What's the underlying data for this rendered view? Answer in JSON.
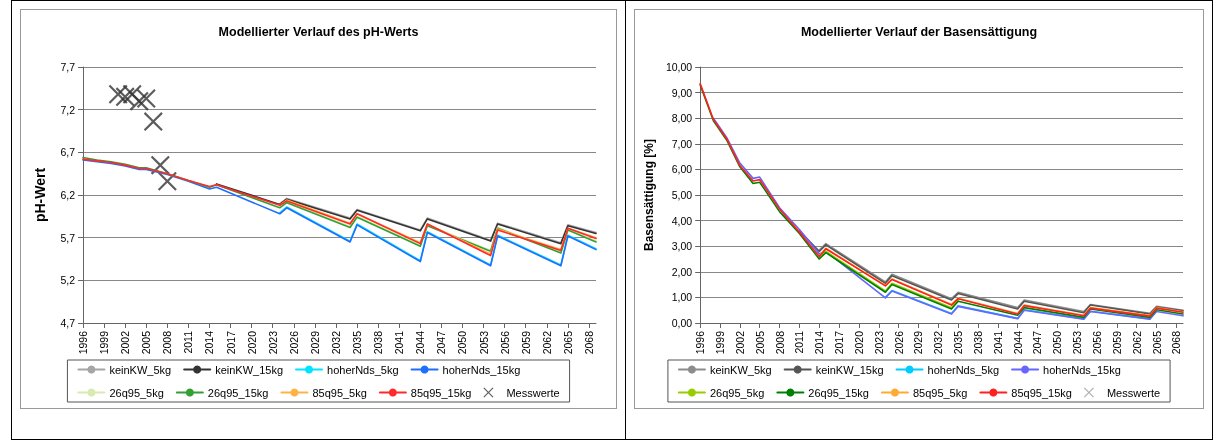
{
  "chart_data": [
    {
      "type": "line",
      "title": "Modellierter Verlauf des pH-Werts",
      "ylabel": "pH-Wert",
      "x": [
        1996,
        1998,
        2000,
        2002,
        2004,
        2005,
        2008,
        2011,
        2014,
        2015,
        2024,
        2025,
        2034,
        2035,
        2044,
        2045,
        2054,
        2055,
        2064,
        2065,
        2069
      ],
      "xlim": [
        1996,
        2069
      ],
      "xticks": [
        1996,
        1999,
        2002,
        2005,
        2008,
        2011,
        2014,
        2017,
        2020,
        2023,
        2026,
        2029,
        2032,
        2035,
        2038,
        2041,
        2044,
        2047,
        2050,
        2053,
        2056,
        2059,
        2062,
        2065,
        2068
      ],
      "ylim": [
        4.7,
        7.7
      ],
      "yticks": [
        {
          "value": 4.7,
          "label": "4,7"
        },
        {
          "value": 5.2,
          "label": "5,2"
        },
        {
          "value": 5.7,
          "label": "5,7"
        },
        {
          "value": 6.2,
          "label": "6,2"
        },
        {
          "value": 6.7,
          "label": "6,7"
        },
        {
          "value": 7.2,
          "label": "7,2"
        },
        {
          "value": 7.7,
          "label": "7,7"
        }
      ],
      "grid": "y",
      "legend": "bottom",
      "marker": "none",
      "line_style": "solid",
      "series": [
        {
          "name": "keinKW_5kg",
          "color": "#a6a6a6",
          "values": [
            null,
            null,
            null,
            null,
            null,
            null,
            null,
            null,
            null,
            null,
            6.1,
            6.16,
            5.93,
            6.03,
            5.79,
            5.93,
            5.67,
            5.87,
            5.64,
            5.85,
            5.76
          ]
        },
        {
          "name": "keinKW_15kg",
          "color": "#333333",
          "values": [
            null,
            null,
            null,
            null,
            null,
            null,
            null,
            null,
            null,
            6.33,
            6.09,
            6.15,
            5.92,
            6.02,
            5.78,
            5.92,
            5.66,
            5.86,
            5.63,
            5.84,
            5.75
          ]
        },
        {
          "name": "hoherNds_5kg",
          "color": "#00e5ff",
          "values": [
            null,
            null,
            null,
            null,
            null,
            null,
            null,
            null,
            null,
            null,
            5.99,
            6.06,
            5.66,
            5.86,
            5.43,
            5.77,
            5.38,
            5.73,
            5.38,
            5.73,
            5.57
          ]
        },
        {
          "name": "hoherNds_15kg",
          "color": "#1f6fff",
          "values": [
            6.61,
            6.59,
            6.57,
            6.54,
            6.5,
            6.5,
            6.44,
            6.36,
            6.27,
            6.29,
            5.98,
            6.05,
            5.65,
            5.85,
            5.42,
            5.76,
            5.37,
            5.72,
            5.37,
            5.72,
            5.56
          ]
        },
        {
          "name": "26q95_5kg",
          "color": "#d9eab0",
          "values": [
            null,
            null,
            null,
            null,
            null,
            null,
            null,
            null,
            null,
            null,
            6.06,
            6.12,
            5.83,
            5.95,
            5.61,
            5.85,
            5.55,
            5.82,
            5.53,
            5.8,
            5.66
          ]
        },
        {
          "name": "26q95_15kg",
          "color": "#33a033",
          "values": [
            6.64,
            6.61,
            6.59,
            6.56,
            6.52,
            6.52,
            6.45,
            6.37,
            6.29,
            6.32,
            6.05,
            6.11,
            5.82,
            5.94,
            5.6,
            5.84,
            5.54,
            5.81,
            5.52,
            5.79,
            5.65
          ]
        },
        {
          "name": "85q95_5kg",
          "color": "#ffb347",
          "values": [
            null,
            null,
            null,
            null,
            null,
            null,
            null,
            null,
            null,
            null,
            6.08,
            6.14,
            5.87,
            5.98,
            5.64,
            5.86,
            5.51,
            5.8,
            5.56,
            5.81,
            5.7
          ]
        },
        {
          "name": "85q95_15kg",
          "color": "#ff2a2a",
          "values": [
            6.62,
            6.6,
            6.58,
            6.55,
            6.51,
            6.51,
            6.45,
            6.37,
            6.3,
            6.32,
            6.08,
            6.13,
            5.86,
            5.98,
            5.63,
            5.86,
            5.49,
            5.79,
            5.55,
            5.81,
            5.69
          ]
        },
        {
          "name": "Messwerte",
          "type": "scatter",
          "marker": "cross",
          "color": "#333333",
          "x": [
            2001,
            2002,
            2003,
            2004,
            2005,
            2006,
            2007,
            2008
          ],
          "values": [
            7.38,
            7.35,
            7.38,
            7.3,
            7.33,
            7.06,
            6.55,
            6.36
          ]
        }
      ]
    },
    {
      "type": "line",
      "title": "Modellierter Verlauf der Basensättigung",
      "ylabel": "Basensättigung [%]",
      "x": [
        1996,
        1998,
        2000,
        2002,
        2004,
        2005,
        2008,
        2011,
        2014,
        2015,
        2024,
        2025,
        2034,
        2035,
        2044,
        2045,
        2054,
        2055,
        2064,
        2065,
        2069
      ],
      "xlim": [
        1996,
        2069
      ],
      "xticks": [
        1996,
        1999,
        2002,
        2005,
        2008,
        2011,
        2014,
        2017,
        2020,
        2023,
        2026,
        2029,
        2032,
        2035,
        2038,
        2041,
        2044,
        2047,
        2050,
        2053,
        2056,
        2059,
        2062,
        2065,
        2068
      ],
      "ylim": [
        0,
        10
      ],
      "yticks": [
        {
          "value": 0,
          "label": "0,00"
        },
        {
          "value": 1,
          "label": "1,00"
        },
        {
          "value": 2,
          "label": "2,00"
        },
        {
          "value": 3,
          "label": "3,00"
        },
        {
          "value": 4,
          "label": "4,00"
        },
        {
          "value": 5,
          "label": "5,00"
        },
        {
          "value": 6,
          "label": "6,00"
        },
        {
          "value": 7,
          "label": "7,00"
        },
        {
          "value": 8,
          "label": "8,00"
        },
        {
          "value": 9,
          "label": "9,00"
        },
        {
          "value": 10,
          "label": "10,00"
        }
      ],
      "grid": "y",
      "legend": "bottom",
      "marker": "none",
      "line_style": "solid",
      "series": [
        {
          "name": "keinKW_5kg",
          "color": "#8c8c8c",
          "values": [
            null,
            null,
            null,
            null,
            null,
            null,
            null,
            null,
            2.85,
            3.1,
            1.6,
            1.9,
            0.95,
            1.2,
            0.6,
            0.9,
            0.45,
            0.72,
            0.38,
            0.65,
            0.5
          ]
        },
        {
          "name": "keinKW_15kg",
          "color": "#555555",
          "values": [
            null,
            null,
            null,
            null,
            null,
            null,
            null,
            3.6,
            2.8,
            3.05,
            1.55,
            1.85,
            0.9,
            1.15,
            0.55,
            0.85,
            0.4,
            0.7,
            0.35,
            0.62,
            0.48
          ]
        },
        {
          "name": "hoherNds_5kg",
          "color": "#00ccff",
          "values": [
            null,
            null,
            null,
            null,
            null,
            null,
            null,
            null,
            null,
            null,
            1.0,
            1.27,
            0.37,
            0.67,
            0.18,
            0.52,
            0.16,
            0.46,
            0.16,
            null,
            null
          ]
        },
        {
          "name": "hoherNds_15kg",
          "color": "#6666ff",
          "values": [
            null,
            8.0,
            7.25,
            6.25,
            5.65,
            5.7,
            4.5,
            3.65,
            2.7,
            2.8,
            0.98,
            1.25,
            0.35,
            0.65,
            0.17,
            0.5,
            0.15,
            0.45,
            0.15,
            0.45,
            0.28
          ]
        },
        {
          "name": "26q95_5kg",
          "color": "#99cc00",
          "values": [
            null,
            null,
            null,
            null,
            null,
            null,
            null,
            null,
            2.55,
            2.8,
            1.25,
            1.55,
            0.6,
            0.9,
            null,
            null,
            null,
            null,
            null,
            null,
            null
          ]
        },
        {
          "name": "26q95_15kg",
          "color": "#008000",
          "values": [
            9.3,
            7.9,
            7.15,
            6.1,
            5.45,
            5.5,
            4.35,
            3.5,
            2.5,
            2.75,
            1.2,
            1.5,
            0.55,
            0.85,
            0.3,
            0.6,
            0.22,
            0.55,
            0.22,
            0.52,
            0.35
          ]
        },
        {
          "name": "85q95_5kg",
          "color": "#ffaa33",
          "values": [
            null,
            null,
            null,
            null,
            null,
            null,
            null,
            null,
            2.62,
            2.92,
            1.47,
            1.72,
            0.72,
            0.97,
            0.37,
            0.7,
            0.3,
            0.6,
            0.29,
            0.6,
            0.44
          ]
        },
        {
          "name": "85q95_15kg",
          "color": "#ff2020",
          "values": [
            9.35,
            7.95,
            7.2,
            6.15,
            5.55,
            5.6,
            4.45,
            3.55,
            2.6,
            2.9,
            1.45,
            1.7,
            0.7,
            0.95,
            0.35,
            0.68,
            0.28,
            0.58,
            0.27,
            0.58,
            0.42
          ]
        },
        {
          "name": "Messwerte",
          "type": "scatter",
          "marker": "cross",
          "color": "#999999",
          "values": [
            null,
            null,
            null,
            null,
            null,
            null,
            null,
            null,
            null,
            null,
            null,
            null,
            null,
            null,
            null,
            null,
            null,
            null,
            null,
            null,
            null
          ]
        }
      ]
    }
  ]
}
